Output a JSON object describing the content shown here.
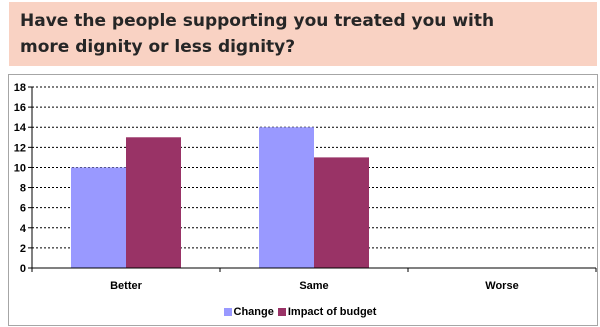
{
  "header": {
    "title": "Have the people supporting you treated you with more dignity or less dignity?"
  },
  "chart_data": {
    "type": "bar",
    "title": "Have the people supporting you treated you with more dignity or less dignity?",
    "categories": [
      "Better",
      "Same",
      "Worse"
    ],
    "series": [
      {
        "name": "Change",
        "values": [
          10,
          14,
          0
        ],
        "color": "#9999ff"
      },
      {
        "name": "Impact of budget",
        "values": [
          13,
          11,
          0
        ],
        "color": "#993366"
      }
    ],
    "ylim": [
      0,
      18
    ],
    "yticks": [
      0,
      2,
      4,
      6,
      8,
      10,
      12,
      14,
      16,
      18
    ],
    "grid": "dashed horizontal",
    "legend": "bottom"
  }
}
